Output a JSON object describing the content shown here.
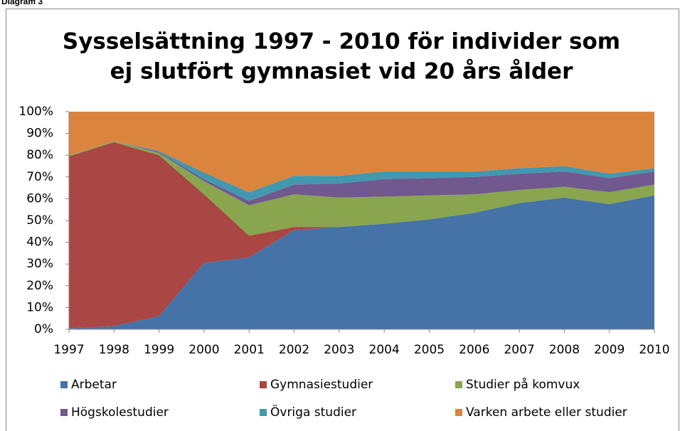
{
  "label": "Diagram 3",
  "chart_data": {
    "type": "stacked_area",
    "title": [
      "Sysselsättning 1997 - 2010 för individer som",
      "ej slutfört gymnasiet vid 20 års ålder"
    ],
    "categories": [
      "1997",
      "1998",
      "1999",
      "2000",
      "2001",
      "2002",
      "2003",
      "2004",
      "2005",
      "2006",
      "2007",
      "2008",
      "2009",
      "2010"
    ],
    "series": [
      {
        "name": "Arbetar",
        "color": "#4572a7",
        "values": [
          0.5,
          1.5,
          6,
          30.5,
          33,
          45.5,
          47,
          48.5,
          50.5,
          53.5,
          58,
          60.5,
          57.5,
          61.5
        ]
      },
      {
        "name": "Gymnasiestudier",
        "color": "#aa4643",
        "values": [
          79,
          84.5,
          74,
          31.5,
          10,
          1.5,
          0,
          0,
          0,
          0,
          0,
          0,
          0,
          0
        ]
      },
      {
        "name": "Studier på komvux",
        "color": "#89a54e",
        "values": [
          0.5,
          0.5,
          1,
          6,
          14,
          15,
          13.5,
          12.5,
          11,
          8.5,
          6,
          5,
          5.5,
          5
        ]
      },
      {
        "name": "Högskolestudier",
        "color": "#71588f",
        "values": [
          0,
          0,
          0.5,
          1,
          2,
          4.5,
          6.5,
          8,
          8,
          8,
          7.5,
          7,
          6.5,
          6
        ]
      },
      {
        "name": "Övriga studier",
        "color": "#4198af",
        "values": [
          0,
          0,
          0.5,
          3,
          4,
          4,
          3.5,
          3.5,
          3,
          2.5,
          2.5,
          2.5,
          2,
          1.5
        ]
      },
      {
        "name": "Varken arbete eller studier",
        "color": "#db843d",
        "values": [
          20,
          13.5,
          18,
          28,
          37,
          29.5,
          29.5,
          27.5,
          27.5,
          27.5,
          26,
          25,
          28.5,
          26
        ]
      }
    ],
    "ylim": [
      0,
      100
    ],
    "yticks": [
      {
        "value": 0,
        "label": "0%"
      },
      {
        "value": 10,
        "label": "10%"
      },
      {
        "value": 20,
        "label": "20%"
      },
      {
        "value": 30,
        "label": "30%"
      },
      {
        "value": 40,
        "label": "40%"
      },
      {
        "value": 50,
        "label": "50%"
      },
      {
        "value": 60,
        "label": "60%"
      },
      {
        "value": 70,
        "label": "70%"
      },
      {
        "value": 80,
        "label": "80%"
      },
      {
        "value": 90,
        "label": "90%"
      },
      {
        "value": 100,
        "label": "100%"
      }
    ],
    "grid": false
  }
}
